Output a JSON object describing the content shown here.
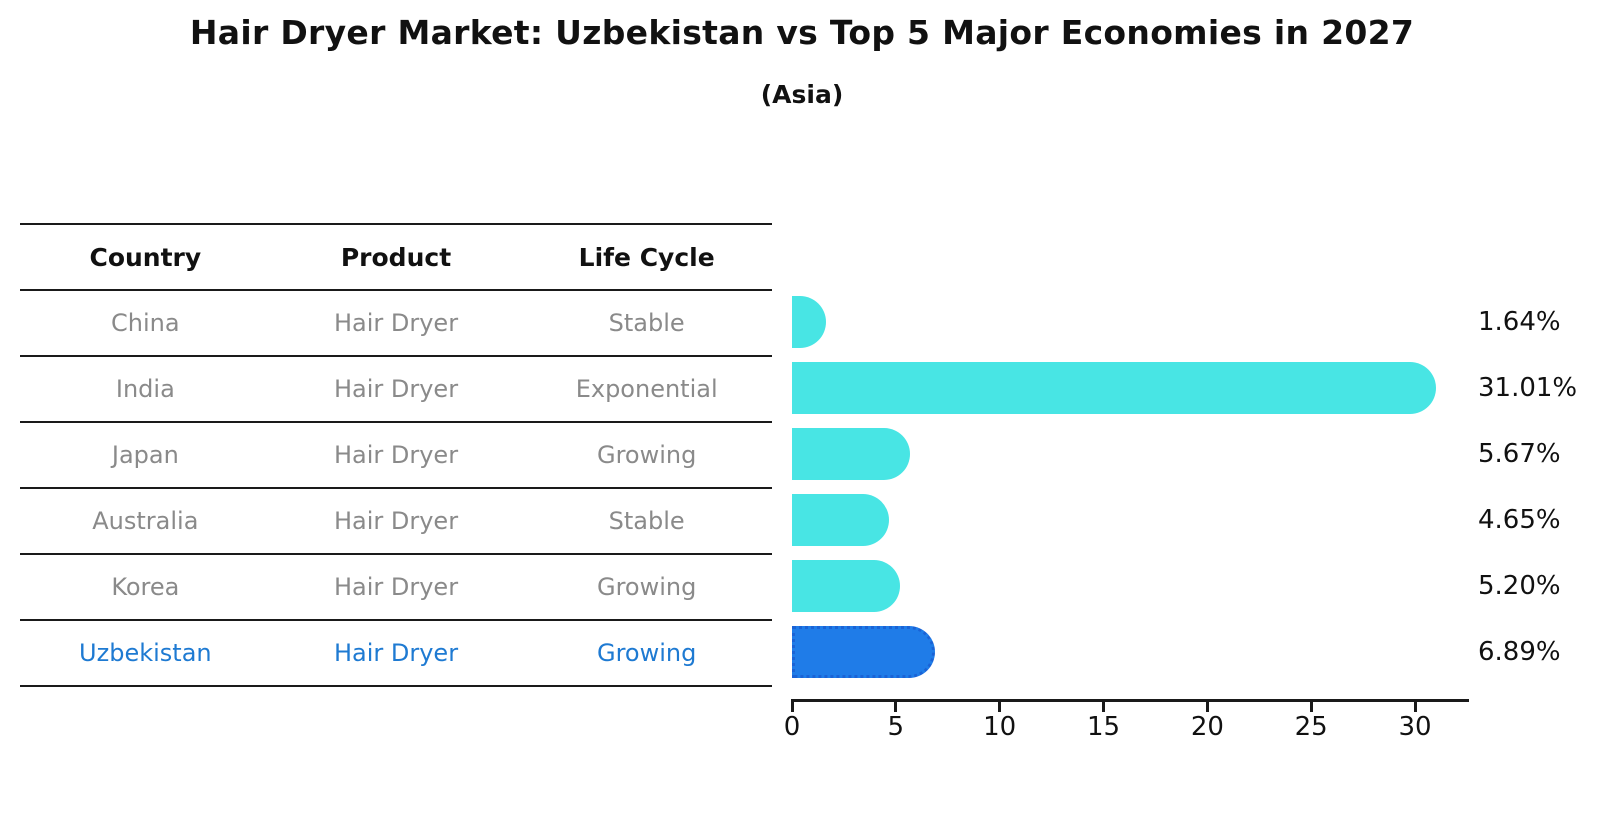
{
  "title": "Hair Dryer Market: Uzbekistan vs Top 5 Major Economies in 2027",
  "subtitle": "(Asia)",
  "table": {
    "headers": [
      "Country",
      "Product",
      "Life Cycle"
    ],
    "rows": [
      {
        "country": "China",
        "product": "Hair Dryer",
        "life_cycle": "Stable",
        "highlight": false
      },
      {
        "country": "India",
        "product": "Hair Dryer",
        "life_cycle": "Exponential",
        "highlight": false
      },
      {
        "country": "Japan",
        "product": "Hair Dryer",
        "life_cycle": "Growing",
        "highlight": false
      },
      {
        "country": "Australia",
        "product": "Hair Dryer",
        "life_cycle": "Stable",
        "highlight": false
      },
      {
        "country": "Korea",
        "product": "Hair Dryer",
        "life_cycle": "Growing",
        "highlight": false
      },
      {
        "country": "Uzbekistan",
        "product": "Hair Dryer",
        "life_cycle": "Growing",
        "highlight": true
      }
    ]
  },
  "chart_data": {
    "type": "bar",
    "orientation": "horizontal",
    "categories": [
      "China",
      "India",
      "Japan",
      "Australia",
      "Korea",
      "Uzbekistan"
    ],
    "values": [
      1.64,
      31.01,
      5.67,
      4.65,
      5.2,
      6.89
    ],
    "value_labels": [
      "1.64%",
      "31.01%",
      "5.67%",
      "4.65%",
      "5.20%",
      "6.89%"
    ],
    "x_ticks": [
      0,
      5,
      10,
      15,
      20,
      25,
      30
    ],
    "xlim": [
      0,
      32.55
    ],
    "grid": false,
    "legend": "none",
    "bar_color": "#48e5e4",
    "highlight_color": "#1f7ce8",
    "highlight_border_color": "#1a63d6",
    "highlight_index": 5
  },
  "colors": {
    "text": "#111111",
    "muted_text": "#8a8a8a",
    "highlight_text": "#1e7ad2",
    "line": "#1a1a1a"
  }
}
